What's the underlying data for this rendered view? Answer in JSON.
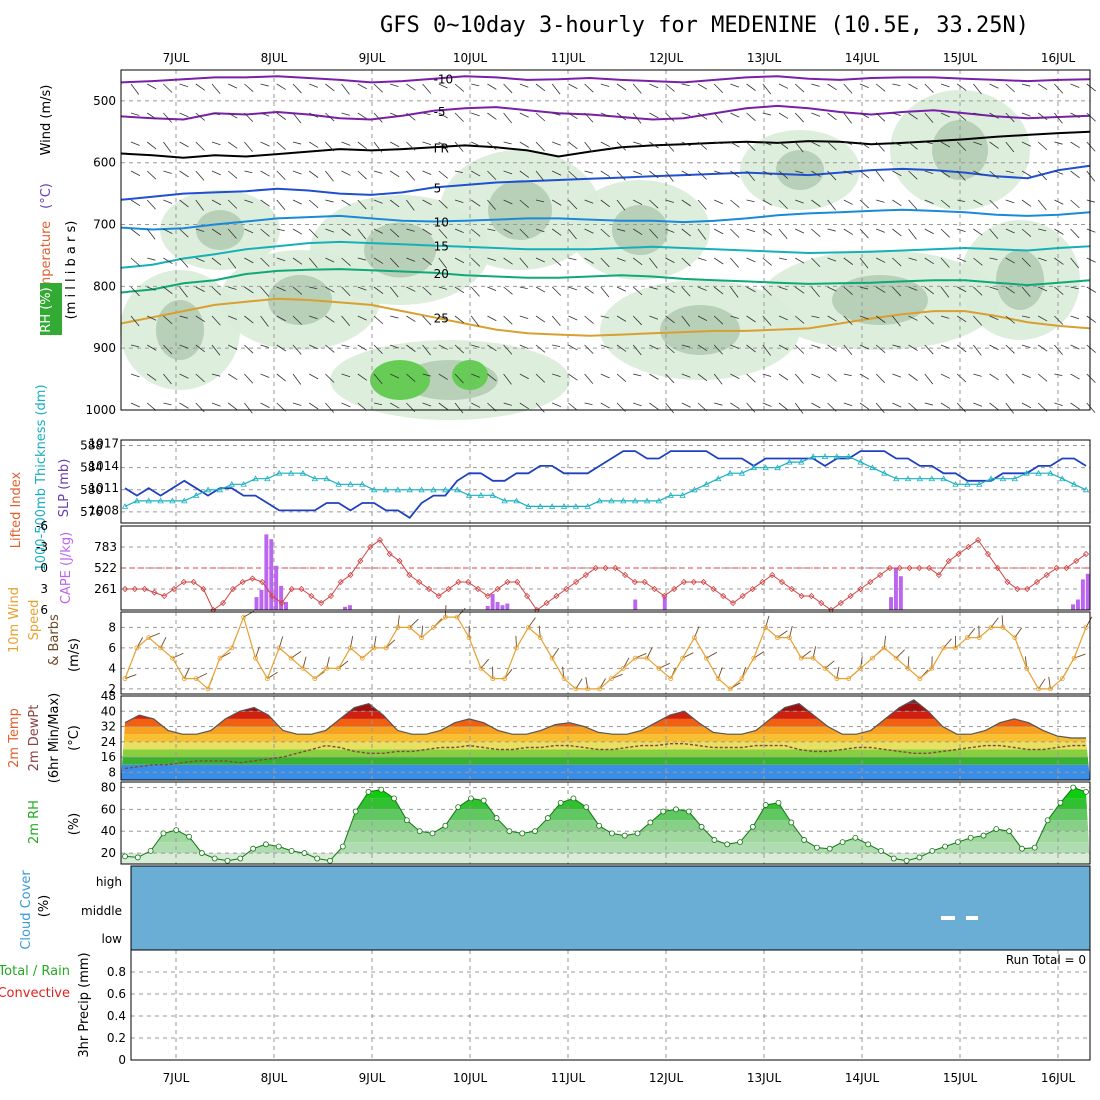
{
  "title": "GFS 0~10day 3-hourly for MEDENINE (10.5E, 33.25N)",
  "dates": [
    "7JUL",
    "8JUL",
    "9JUL",
    "10JUL",
    "11JUL",
    "12JUL",
    "13JUL",
    "14JUL",
    "15JUL",
    "16JUL"
  ],
  "colors": {
    "frame": "#000000",
    "grid": "#9a9a9a",
    "rh_fill": "#d9ecd9",
    "rh_dark": "#a8c2a8",
    "cloud": "#6aaed6"
  },
  "chart_data": [
    {
      "type": "heatmap",
      "panel": "upper_air",
      "ylabel_parts": [
        {
          "text": "RH (%)",
          "color": "#22aa22"
        },
        {
          "text": "Temperature",
          "color": "#e06030"
        },
        {
          "text": "(°C)",
          "color": "#6a3db0"
        },
        {
          "text": "Wind (m/s)",
          "color": "#000000"
        }
      ],
      "ylabel2": "(m i l l i b a r s)",
      "yticks": [
        500,
        600,
        700,
        800,
        900,
        1000
      ],
      "ylim": [
        450,
        1000
      ],
      "isotherms": [
        {
          "label": "-10",
          "color": "#7a1fa8",
          "p": [
            470,
            468,
            465,
            462,
            462,
            460,
            463,
            466,
            470,
            468,
            464,
            460,
            462,
            466,
            465,
            463,
            466,
            468,
            470,
            466,
            462,
            460,
            464,
            466,
            463,
            462,
            462,
            464,
            466,
            468,
            466,
            465
          ]
        },
        {
          "label": "-5",
          "color": "#7a1fa8",
          "p": [
            525,
            528,
            530,
            520,
            522,
            518,
            522,
            528,
            530,
            524,
            516,
            512,
            510,
            515,
            520,
            522,
            526,
            530,
            528,
            520,
            512,
            508,
            512,
            518,
            522,
            518,
            515,
            520,
            525,
            528,
            526,
            524
          ]
        },
        {
          "label": "FR",
          "color": "#000000",
          "p": [
            585,
            588,
            592,
            588,
            590,
            586,
            582,
            578,
            580,
            578,
            575,
            572,
            575,
            580,
            590,
            582,
            575,
            572,
            570,
            568,
            566,
            568,
            565,
            566,
            570,
            568,
            565,
            562,
            558,
            555,
            552,
            550
          ]
        },
        {
          "label": "5",
          "color": "#2050d0",
          "p": [
            660,
            655,
            650,
            648,
            646,
            642,
            645,
            650,
            652,
            648,
            640,
            636,
            632,
            630,
            628,
            626,
            624,
            622,
            620,
            618,
            616,
            618,
            620,
            616,
            612,
            610,
            612,
            616,
            622,
            625,
            612,
            605
          ]
        },
        {
          "label": "10",
          "color": "#1a8ad8",
          "p": [
            705,
            708,
            706,
            700,
            695,
            690,
            688,
            686,
            690,
            694,
            695,
            694,
            692,
            690,
            690,
            692,
            694,
            694,
            696,
            694,
            690,
            685,
            682,
            680,
            678,
            676,
            678,
            680,
            684,
            686,
            684,
            680
          ]
        },
        {
          "label": "15",
          "color": "#18b0b8",
          "p": [
            770,
            765,
            755,
            748,
            740,
            735,
            730,
            728,
            730,
            732,
            734,
            736,
            738,
            740,
            740,
            740,
            738,
            736,
            738,
            740,
            742,
            744,
            746,
            745,
            744,
            742,
            740,
            738,
            740,
            742,
            738,
            735
          ]
        },
        {
          "label": "20",
          "color": "#10a878",
          "p": [
            810,
            805,
            795,
            790,
            780,
            775,
            773,
            772,
            774,
            776,
            778,
            782,
            784,
            786,
            786,
            784,
            782,
            784,
            788,
            790,
            792,
            794,
            796,
            795,
            794,
            792,
            790,
            790,
            794,
            798,
            794,
            790
          ]
        },
        {
          "label": "25",
          "color": "#d8a030",
          "p": [
            860,
            850,
            840,
            830,
            825,
            820,
            822,
            826,
            830,
            840,
            850,
            860,
            870,
            876,
            878,
            880,
            878,
            876,
            874,
            872,
            872,
            870,
            868,
            860,
            852,
            845,
            840,
            840,
            848,
            858,
            864,
            868
          ]
        }
      ]
    },
    {
      "type": "line",
      "panel": "slp_thickness",
      "ylabel": "1000-500mb Thickness (dm)",
      "ylabel_right": "SLP (mb)",
      "yticks_left": [
        576,
        580,
        584,
        588
      ],
      "yticks_right": [
        1008,
        1011,
        1014,
        1017
      ],
      "series": [
        {
          "color": "#2040c0",
          "values": [
            1011,
            1010,
            1011,
            1010,
            1011,
            1012,
            1011,
            1010,
            1011,
            1011,
            1010,
            1010,
            1009,
            1008,
            1008,
            1008,
            1008,
            1009,
            1009,
            1008,
            1009,
            1009,
            1008,
            1008,
            1007,
            1009,
            1010,
            1010,
            1012,
            1013,
            1013,
            1012,
            1012,
            1013,
            1013,
            1014,
            1014,
            1013,
            1013,
            1013,
            1014,
            1015,
            1016,
            1016,
            1015,
            1015,
            1016,
            1016,
            1016,
            1016,
            1015,
            1015,
            1015,
            1014,
            1015,
            1015,
            1015,
            1015,
            1015,
            1014,
            1015,
            1015,
            1016,
            1016,
            1016,
            1015,
            1015,
            1014,
            1014,
            1013,
            1013,
            1012,
            1012,
            1012,
            1013,
            1013,
            1013,
            1014,
            1014,
            1015,
            1015,
            1014
          ]
        },
        {
          "color": "#18b0c0",
          "values": [
            577,
            578,
            578,
            578,
            578,
            578,
            579,
            580,
            580,
            581,
            581,
            582,
            582,
            583,
            583,
            583,
            582,
            582,
            581,
            581,
            581,
            580,
            580,
            580,
            580,
            580,
            580,
            580,
            580,
            579,
            579,
            579,
            578,
            578,
            577,
            577,
            577,
            577,
            577,
            577,
            578,
            578,
            578,
            578,
            578,
            578,
            579,
            579,
            580,
            581,
            582,
            583,
            583,
            584,
            584,
            584,
            585,
            585,
            586,
            586,
            586,
            586,
            585,
            584,
            583,
            582,
            582,
            582,
            582,
            582,
            581,
            581,
            581,
            582,
            582,
            582,
            583,
            583,
            583,
            582,
            581,
            580
          ]
        }
      ]
    },
    {
      "type": "bar",
      "panel": "cape_li",
      "ylabel": "CAPE (J/kg)",
      "ylabel2": "Lifted Index",
      "yticks_cape": [
        261,
        522,
        783
      ],
      "yticks_li": [
        "-6",
        "-3",
        "0",
        "3",
        "6"
      ],
      "cape_values": [
        0,
        0,
        0,
        0,
        0,
        0,
        0,
        0,
        0,
        0,
        0,
        0,
        0,
        0,
        0,
        0,
        0,
        0,
        0,
        0,
        0,
        0,
        0,
        0,
        0,
        0,
        0,
        160,
        250,
        940,
        880,
        550,
        300,
        100,
        0,
        0,
        0,
        0,
        0,
        0,
        0,
        0,
        0,
        0,
        0,
        40,
        60,
        0,
        0,
        0,
        0,
        0,
        0,
        0,
        0,
        0,
        0,
        0,
        0,
        0,
        0,
        0,
        0,
        0,
        0,
        0,
        0,
        0,
        0,
        0,
        0,
        0,
        0,
        0,
        50,
        200,
        100,
        60,
        80,
        0,
        0,
        0,
        0,
        0,
        0,
        0,
        0,
        0,
        0,
        0,
        0,
        0,
        0,
        0,
        0,
        0,
        0,
        0,
        0,
        0,
        0,
        0,
        0,
        0,
        130,
        0,
        0,
        0,
        0,
        0,
        170,
        0,
        0,
        0,
        0,
        0,
        0,
        0,
        0,
        0,
        0,
        0,
        0,
        0,
        0,
        0,
        0,
        0,
        0,
        0,
        0,
        0,
        0,
        0,
        0,
        0,
        0,
        0,
        0,
        0,
        0,
        0,
        0,
        0,
        0,
        0,
        0,
        0,
        0,
        0,
        0,
        0,
        0,
        0,
        0,
        0,
        160,
        520,
        420,
        0,
        0,
        0,
        0,
        0,
        0,
        0,
        0,
        0,
        0,
        0,
        0,
        0,
        0,
        0,
        0,
        0,
        0,
        0,
        0,
        0,
        0,
        0,
        0,
        0,
        0,
        0,
        0,
        0,
        0,
        0,
        0,
        0,
        0,
        70,
        130,
        380,
        450
      ],
      "li_values": [
        3,
        3,
        3,
        3.5,
        4,
        3,
        2,
        2,
        3,
        6,
        5,
        3,
        2,
        1.5,
        2,
        4,
        5,
        3,
        3,
        4,
        5,
        4,
        2,
        1,
        -1,
        -3,
        -4,
        -2,
        -1,
        1,
        2,
        3,
        4,
        3,
        2,
        2,
        3,
        4,
        3,
        2,
        2,
        4,
        6,
        5,
        4,
        3,
        2,
        1,
        0,
        0,
        0,
        1,
        2,
        2,
        3,
        4,
        3,
        2,
        2,
        2,
        3,
        4,
        5,
        4,
        3,
        2,
        1,
        2,
        3,
        4,
        4,
        5,
        6,
        5,
        4,
        3,
        2,
        1,
        0,
        0,
        0,
        0,
        0,
        1,
        -1,
        -2,
        -3,
        -4,
        -2,
        0,
        2,
        3,
        3,
        2,
        1,
        0,
        0,
        -1,
        -2
      ]
    },
    {
      "type": "line",
      "panel": "wind10m",
      "ylabel": "10m Wind Speed & Barbs (m/s)",
      "yticks": [
        2,
        4,
        6,
        8
      ],
      "ylim": [
        1.5,
        9.5
      ],
      "values": [
        3,
        6,
        7,
        6,
        5,
        3,
        3,
        2,
        5,
        6,
        9,
        5,
        3,
        6,
        5,
        4,
        3,
        4,
        4,
        6,
        5,
        6,
        6,
        8,
        8,
        7,
        8,
        9,
        9,
        7,
        4,
        3,
        3,
        6,
        8,
        7,
        5,
        3,
        2,
        2,
        2,
        3,
        4,
        5,
        5,
        4,
        3,
        5,
        7,
        5,
        3,
        2,
        3,
        5,
        8,
        7,
        7,
        5,
        5,
        4,
        3,
        3,
        4,
        5,
        6,
        5,
        4,
        3,
        4,
        6,
        6,
        7,
        7,
        8,
        8,
        7,
        4,
        2,
        2,
        3,
        5,
        8
      ]
    },
    {
      "type": "area",
      "panel": "temp2m",
      "ylabel": "2m Temp 2m DewPt (6hr Min/Max) (°C)",
      "yticks": [
        8,
        16,
        24,
        32,
        40,
        48
      ],
      "ylim": [
        4,
        48
      ],
      "temp": [
        34,
        38,
        36,
        30,
        28,
        28,
        30,
        36,
        40,
        42,
        38,
        30,
        28,
        28,
        30,
        36,
        42,
        44,
        38,
        30,
        28,
        28,
        30,
        34,
        36,
        34,
        30,
        28,
        28,
        30,
        33,
        34,
        32,
        29,
        28,
        28,
        30,
        34,
        38,
        40,
        34,
        29,
        28,
        28,
        30,
        36,
        42,
        44,
        38,
        32,
        28,
        28,
        30,
        36,
        42,
        46,
        40,
        32,
        28,
        28,
        30,
        34,
        36,
        34,
        30,
        27,
        26,
        26
      ],
      "dewpt": [
        10,
        11,
        12,
        12,
        13,
        14,
        14,
        14,
        13,
        14,
        15,
        16,
        18,
        20,
        22,
        21,
        19,
        18,
        18,
        19,
        19,
        20,
        21,
        21,
        22,
        21,
        20,
        20,
        21,
        21,
        22,
        22,
        21,
        20,
        20,
        21,
        22,
        22,
        23,
        23,
        22,
        21,
        21,
        21,
        22,
        22,
        22,
        20,
        19,
        19,
        20,
        21,
        21,
        20,
        19,
        18,
        18,
        19,
        20,
        21,
        22,
        22,
        21,
        20,
        20,
        21,
        22,
        22
      ]
    },
    {
      "type": "area",
      "panel": "rh2m",
      "ylabel": "2m RH (%)",
      "yticks": [
        20,
        40,
        60,
        80
      ],
      "ylim": [
        10,
        85
      ],
      "values": [
        17,
        16,
        22,
        38,
        41,
        35,
        20,
        15,
        13,
        15,
        24,
        28,
        26,
        22,
        20,
        15,
        13,
        26,
        58,
        76,
        78,
        70,
        50,
        40,
        38,
        45,
        62,
        70,
        68,
        52,
        40,
        38,
        40,
        52,
        66,
        70,
        62,
        45,
        38,
        36,
        38,
        48,
        58,
        60,
        58,
        44,
        32,
        28,
        30,
        44,
        64,
        66,
        48,
        32,
        25,
        24,
        30,
        34,
        28,
        22,
        15,
        13,
        16,
        22,
        26,
        30,
        34,
        36,
        42,
        40,
        24,
        25,
        50,
        66,
        80,
        76
      ]
    },
    {
      "type": "heatmap",
      "panel": "cloud",
      "ylabel": "Cloud Cover (%)",
      "yticks": [
        "high",
        "middle",
        "low"
      ]
    },
    {
      "type": "bar",
      "panel": "precip",
      "ylabel": "3hr Precip (mm)",
      "ylabel_parts": [
        {
          "text": "Total / Rain",
          "color": "#22aa22"
        },
        {
          "text": "Convective",
          "color": "#e02020"
        }
      ],
      "yticks": [
        "0",
        "0.2",
        "0.4",
        "0.6",
        "0.8"
      ],
      "ylim": [
        0,
        1
      ],
      "run_total": "Run Total = 0",
      "values": []
    }
  ]
}
